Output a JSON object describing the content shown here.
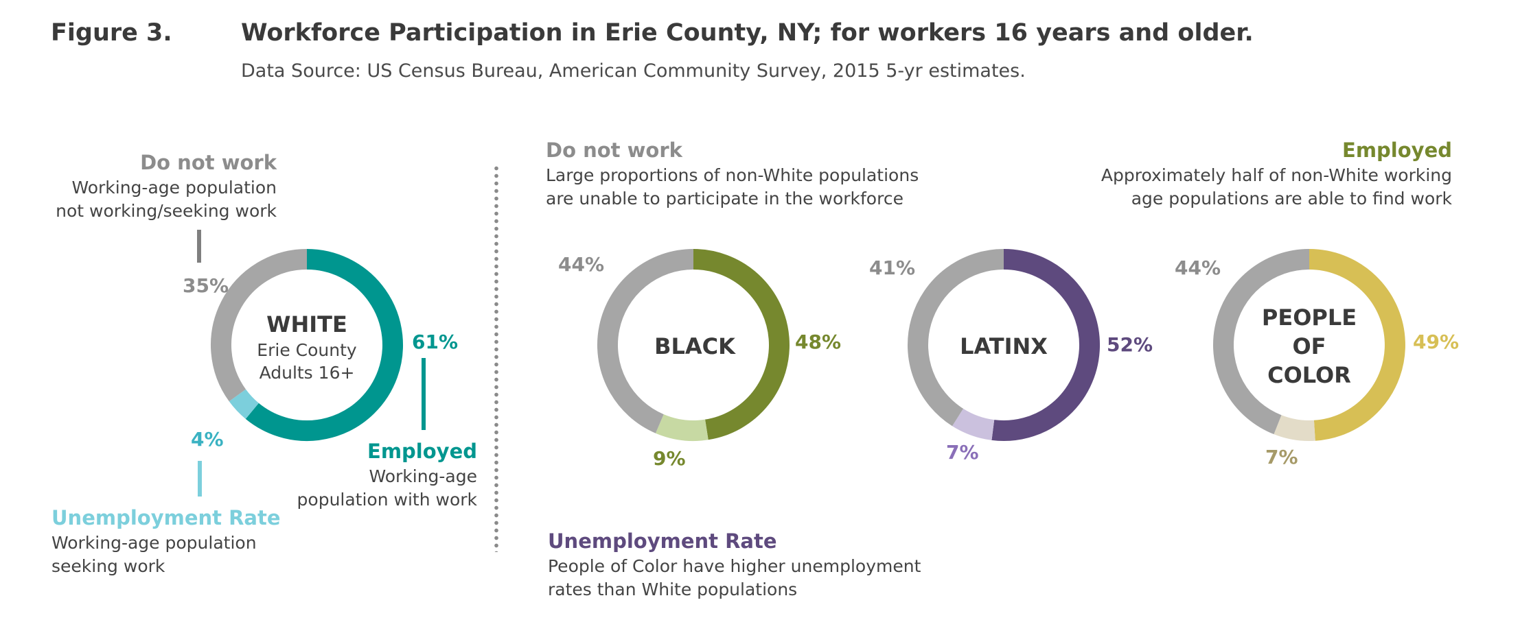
{
  "header": {
    "figure_number": "Figure 3.",
    "title": "Workforce Participation in Erie County, NY; for workers 16 years and older.",
    "source": "Data Source: US Census Bureau, American Community Survey, 2015 5-yr estimates."
  },
  "white_panel": {
    "do_not_work_title": "Do not work",
    "do_not_work_desc_1": "Working-age population",
    "do_not_work_desc_2": "not working/seeking work",
    "employed_title": "Employed",
    "employed_desc_1": "Working-age",
    "employed_desc_2": "population with work",
    "unemployment_title": "Unemployment Rate",
    "unemployment_desc_1": "Working-age population",
    "unemployment_desc_2": "seeking work"
  },
  "comparison_panel": {
    "do_not_work_title": "Do not work",
    "do_not_work_desc_1": "Large proportions of non-White populations",
    "do_not_work_desc_2": "are unable to participate in the workforce",
    "employed_title": "Employed",
    "employed_desc_1": "Approximately half of non-White working",
    "employed_desc_2": "age populations are able to find work",
    "unemployment_title": "Unemployment Rate",
    "unemployment_desc_1": "People of Color have higher unemployment",
    "unemployment_desc_2": "rates than White populations"
  },
  "colors": {
    "do_not_work": "#a6a6a6",
    "white": "#00968f",
    "white_unemployed": "#7ccfdc",
    "black": "#76882e",
    "black_unemployed": "#c7d9a3",
    "latinx": "#5e4a7e",
    "latinx_unemployed": "#cbc1de",
    "poc": "#d7bf55",
    "poc_unemployed": "#e3dcc8",
    "poc_unemployed_label": "#a69a68"
  },
  "chart_data": [
    {
      "type": "pie",
      "center_label": [
        "WHITE"
      ],
      "center_sublabel": [
        "Erie County",
        "Adults 16+"
      ],
      "segments": [
        {
          "category": "Employed",
          "value": 61,
          "label": "61%"
        },
        {
          "category": "Unemployment Rate",
          "value": 4,
          "label": "4%"
        },
        {
          "category": "Do not work",
          "value": 35,
          "label": "35%"
        }
      ]
    },
    {
      "type": "pie",
      "center_label": [
        "BLACK"
      ],
      "segments": [
        {
          "category": "Employed",
          "value": 48,
          "label": "48%"
        },
        {
          "category": "Unemployment Rate",
          "value": 9,
          "label": "9%"
        },
        {
          "category": "Do not work",
          "value": 44,
          "label": "44%"
        }
      ]
    },
    {
      "type": "pie",
      "center_label": [
        "LATINX"
      ],
      "segments": [
        {
          "category": "Employed",
          "value": 52,
          "label": "52%"
        },
        {
          "category": "Unemployment Rate",
          "value": 7,
          "label": "7%"
        },
        {
          "category": "Do not work",
          "value": 41,
          "label": "41%"
        }
      ]
    },
    {
      "type": "pie",
      "center_label": [
        "PEOPLE",
        "OF",
        "COLOR"
      ],
      "segments": [
        {
          "category": "Employed",
          "value": 49,
          "label": "49%"
        },
        {
          "category": "Unemployment Rate",
          "value": 7,
          "label": "7%"
        },
        {
          "category": "Do not work",
          "value": 44,
          "label": "44%"
        }
      ]
    }
  ]
}
